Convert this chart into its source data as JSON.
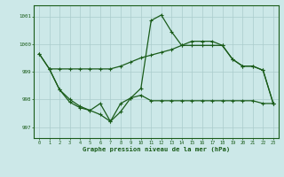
{
  "title": "Graphe pression niveau de la mer (hPa)",
  "background_color": "#cce8e8",
  "grid_color": "#aacccc",
  "line_color": "#1a5c1a",
  "xlim": [
    -0.5,
    23.5
  ],
  "ylim": [
    996.6,
    1001.4
  ],
  "yticks": [
    997,
    998,
    999,
    1000,
    1001
  ],
  "xticks": [
    0,
    1,
    2,
    3,
    4,
    5,
    6,
    7,
    8,
    9,
    10,
    11,
    12,
    13,
    14,
    15,
    16,
    17,
    18,
    19,
    20,
    21,
    22,
    23
  ],
  "series1_x": [
    0,
    1,
    2,
    3,
    4,
    5,
    6,
    7,
    8,
    9,
    10,
    11,
    12,
    13,
    14,
    15,
    16,
    17,
    18,
    19,
    20,
    21,
    22,
    23
  ],
  "series1_y": [
    999.65,
    999.1,
    999.1,
    999.1,
    999.1,
    999.1,
    999.1,
    999.1,
    999.2,
    999.35,
    999.5,
    999.6,
    999.7,
    999.8,
    999.95,
    999.95,
    999.95,
    999.95,
    999.95,
    999.45,
    999.2,
    999.2,
    999.05,
    997.85
  ],
  "series2_x": [
    0,
    1,
    2,
    3,
    4,
    5,
    6,
    7,
    8,
    9,
    10,
    11,
    12,
    13,
    14,
    15,
    16,
    17,
    18,
    19,
    20,
    21,
    22,
    23
  ],
  "series2_y": [
    999.65,
    999.1,
    998.35,
    998.0,
    997.75,
    997.6,
    997.45,
    997.2,
    997.55,
    998.05,
    998.4,
    1000.85,
    1001.05,
    1000.45,
    999.95,
    1000.1,
    1000.1,
    1000.1,
    999.95,
    999.45,
    999.2,
    999.2,
    999.05,
    997.85
  ],
  "series3_x": [
    1,
    2,
    3,
    4,
    5,
    6,
    7,
    8,
    9,
    10,
    11,
    12,
    13,
    14,
    15,
    16,
    17,
    18,
    19,
    20,
    21,
    22,
    23
  ],
  "series3_y": [
    999.1,
    998.35,
    997.9,
    997.7,
    997.6,
    997.85,
    997.2,
    997.85,
    998.05,
    998.15,
    997.95,
    997.95,
    997.95,
    997.95,
    997.95,
    997.95,
    997.95,
    997.95,
    997.95,
    997.95,
    997.95,
    997.85,
    997.85
  ]
}
